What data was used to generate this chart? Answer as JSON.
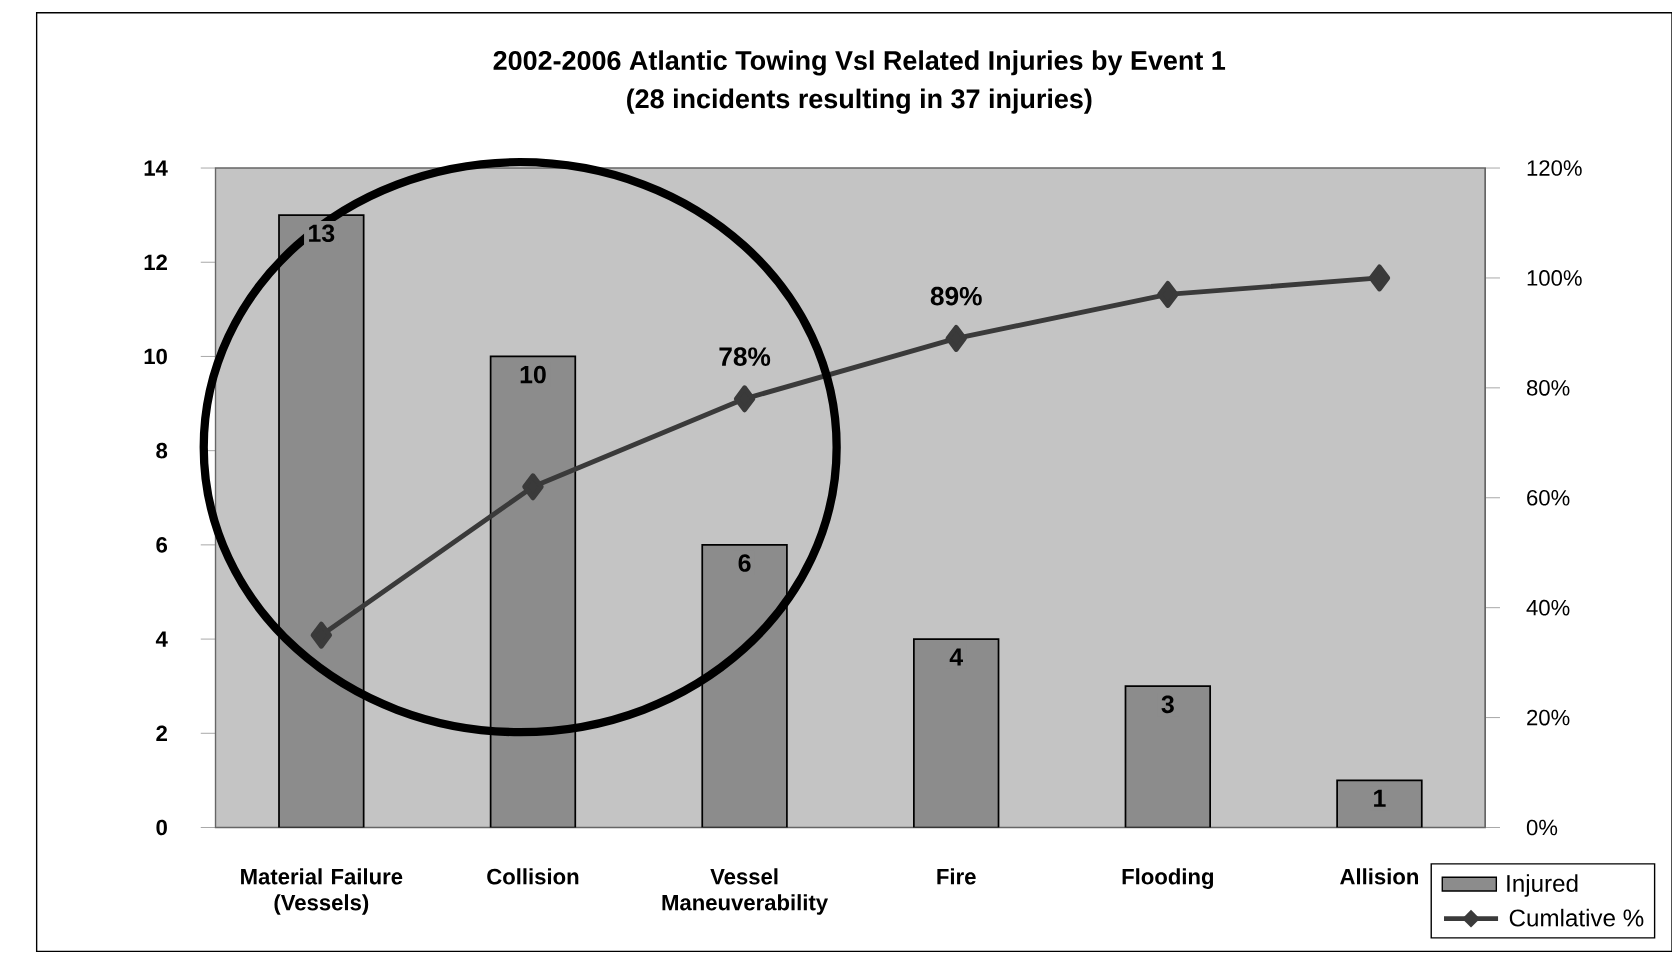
{
  "chart_data": {
    "type": "bar",
    "title": "2002-2006 Atlantic Towing Vsl Related Injuries by Event 1",
    "subtitle": "(28 incidents resulting in 37 injuries)",
    "categories": [
      "Material Failure (Vessels)",
      "Collision",
      "Vessel Maneuverability",
      "Fire",
      "Flooding",
      "Allision"
    ],
    "series": [
      {
        "name": "Injured",
        "color": "#8c8c8c",
        "values": [
          13,
          10,
          6,
          4,
          3,
          1
        ]
      },
      {
        "name": "Cumlative %",
        "type": "line",
        "axis": "y2",
        "color": "#3a3a3a",
        "marker": "diamond",
        "values": [
          35,
          62,
          78,
          89,
          97,
          100
        ],
        "value_labels": [
          null,
          null,
          "78%",
          "89%",
          null,
          null
        ]
      }
    ],
    "data_labels": true,
    "ylim": [
      0,
      14
    ],
    "yticks": [
      0,
      2,
      4,
      6,
      8,
      10,
      12,
      14
    ],
    "y2lim": [
      0,
      120
    ],
    "y2ticks": [
      {
        "value": 0,
        "label": "0%"
      },
      {
        "value": 20,
        "label": "20%"
      },
      {
        "value": 40,
        "label": "40%"
      },
      {
        "value": 60,
        "label": "60%"
      },
      {
        "value": 80,
        "label": "80%"
      },
      {
        "value": 100,
        "label": "100%"
      },
      {
        "value": 120,
        "label": "120%"
      }
    ],
    "legend": "bottom right"
  }
}
